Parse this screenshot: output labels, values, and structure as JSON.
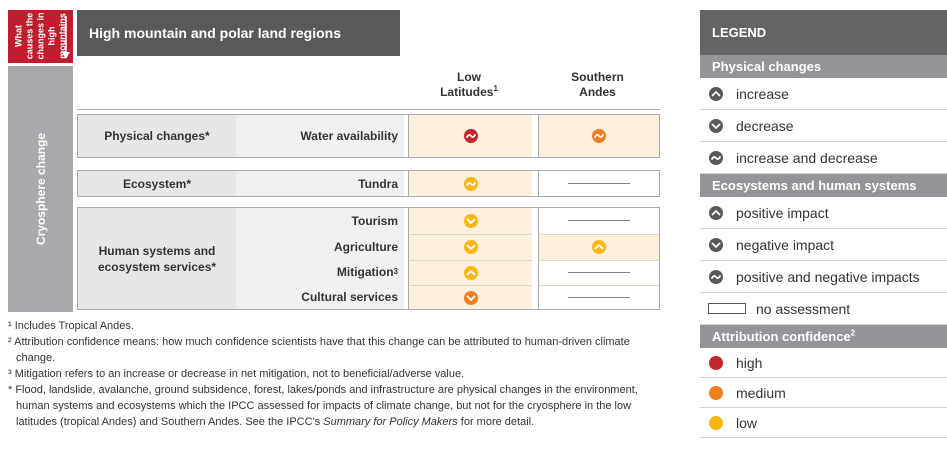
{
  "sidebar": {
    "cause": "What causes the changes in high mountains",
    "cryosphere": "Cryosphere change"
  },
  "header": {
    "title": "High mountain and polar land regions"
  },
  "columns": [
    {
      "label": "Low Latitudes",
      "sup": "1"
    },
    {
      "label": "Southern Andes"
    }
  ],
  "groups": [
    {
      "label": "Physical changes*",
      "rows": [
        {
          "label": "Water availability",
          "cells": [
            {
              "change": "increase and decrease",
              "confidence": "high"
            },
            {
              "change": "increase and decrease",
              "confidence": "medium"
            }
          ]
        }
      ]
    },
    {
      "label": "Ecosystem*",
      "rows": [
        {
          "label": "Tundra",
          "cells": [
            {
              "change": "positive and negative impacts",
              "confidence": "low"
            },
            null
          ]
        }
      ]
    },
    {
      "label": "Human systems and ecosystem services*",
      "rows": [
        {
          "label": "Tourism",
          "cells": [
            {
              "change": "negative impact",
              "confidence": "low"
            },
            null
          ]
        },
        {
          "label": "Agriculture",
          "cells": [
            {
              "change": "negative impact",
              "confidence": "low"
            },
            {
              "change": "positive impact",
              "confidence": "low"
            }
          ]
        },
        {
          "label": "Mitigation",
          "sup": "3",
          "cells": [
            {
              "change": "positive impact",
              "confidence": "low"
            },
            null
          ]
        },
        {
          "label": "Cultural services",
          "cells": [
            {
              "change": "negative impact",
              "confidence": "medium"
            },
            null
          ]
        }
      ]
    }
  ],
  "footnotes": [
    "¹ Includes Tropical Andes.",
    "² Attribution confidence means: how much confidence scientists have that this change can be attributed to human-driven climate change.",
    "³ Mitigation refers to an increase or decrease in net mitigation, not to beneficial/adverse value.",
    {
      "before": "* Flood, landslide, avalanche, ground subsidence, forest, lakes/ponds and infrastructure are physical changes in the environment, human systems and ecosystems which the IPCC assessed for impacts of climate change, but not for the cryosphere in the low latitudes (tropical Andes) and Southern Andes. See the IPCC's ",
      "italic": "Summary for Policy Makers",
      "after": " for more detail."
    }
  ],
  "legend": {
    "title": "LEGEND",
    "physical": {
      "title": "Physical changes",
      "items": [
        "increase",
        "decrease",
        "increase and decrease"
      ]
    },
    "ecosystems": {
      "title": "Ecosystems and human systems",
      "items": [
        "positive impact",
        "negative impact",
        "positive and negative impacts"
      ]
    },
    "no_assessment": "no assessment",
    "confidence": {
      "title": "Attribution confidence",
      "sup": "2",
      "items": [
        {
          "label": "high",
          "color": "#c1272d"
        },
        {
          "label": "medium",
          "color": "#f07f20"
        },
        {
          "label": "low",
          "color": "#fbb614"
        }
      ]
    }
  }
}
